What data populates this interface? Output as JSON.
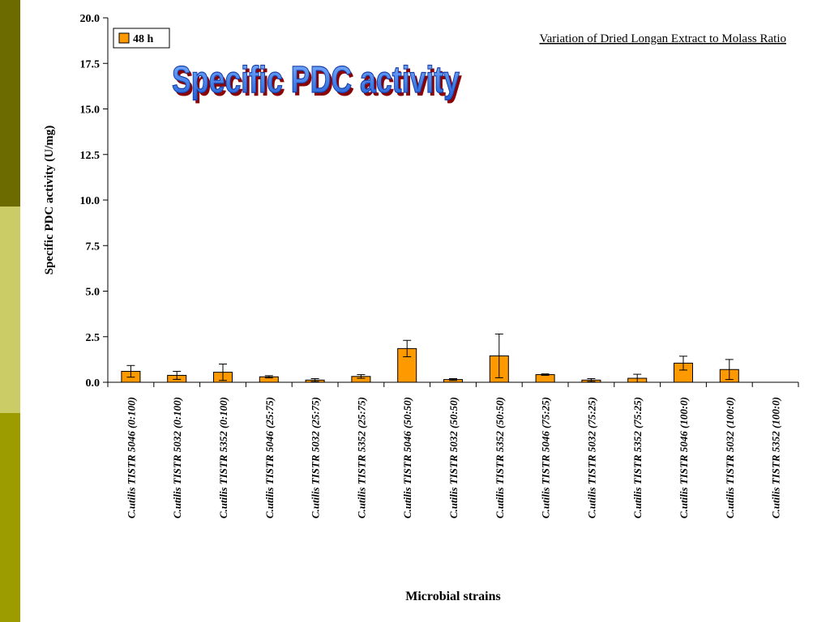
{
  "slide": {
    "stripe_colors": [
      "#6b6b00",
      "#cccc66",
      "#9c9c00"
    ]
  },
  "chart_data": {
    "type": "bar",
    "title": "Specific PDC activity",
    "subtitle": "Variation of Dried Longan Extract to Molass Ratio",
    "xlabel": "Microbial strains",
    "ylabel": "Specific PDC activity (U/mg)",
    "ylim": [
      0,
      20
    ],
    "yticks": [
      "0.0",
      "2.5",
      "5.0",
      "7.5",
      "10.0",
      "12.5",
      "15.0",
      "17.5",
      "20.0"
    ],
    "grid": false,
    "legend": "top-left",
    "categories": [
      "C.utilis TISTR 5046 (0:100)",
      "C.utilis TISTR 5032 (0:100)",
      "C.utilis TISTR 5352 (0:100)",
      "C.utilis TISTR 5046 (25:75)",
      "C.utilis TISTR 5032 (25:75)",
      "C.utilis TISTR 5352 (25:75)",
      "C.utilis TISTR 5046 (50:50)",
      "C.utilis TISTR 5032 (50:50)",
      "C.utilis TISTR 5352 (50:50)",
      "C.utilis TISTR 5046 (75:25)",
      "C.utilis TISTR 5032 (75:25)",
      "C.utilis TISTR 5352 (75:25)",
      "C.utilis TISTR 5046 (100:0)",
      "C.utilis TISTR 5032 (100:0)",
      "C.utilis TISTR 5352 (100:0)"
    ],
    "series": [
      {
        "name": "48 h",
        "color": "#ff9900",
        "values": [
          0.6,
          0.38,
          0.55,
          0.3,
          0.12,
          0.32,
          1.85,
          0.15,
          1.45,
          0.42,
          0.12,
          0.22,
          1.05,
          0.7,
          0
        ],
        "errors": [
          0.32,
          0.22,
          0.45,
          0.06,
          0.08,
          0.1,
          0.45,
          0.05,
          1.2,
          0.04,
          0.08,
          0.22,
          0.38,
          0.55,
          0
        ]
      }
    ]
  }
}
